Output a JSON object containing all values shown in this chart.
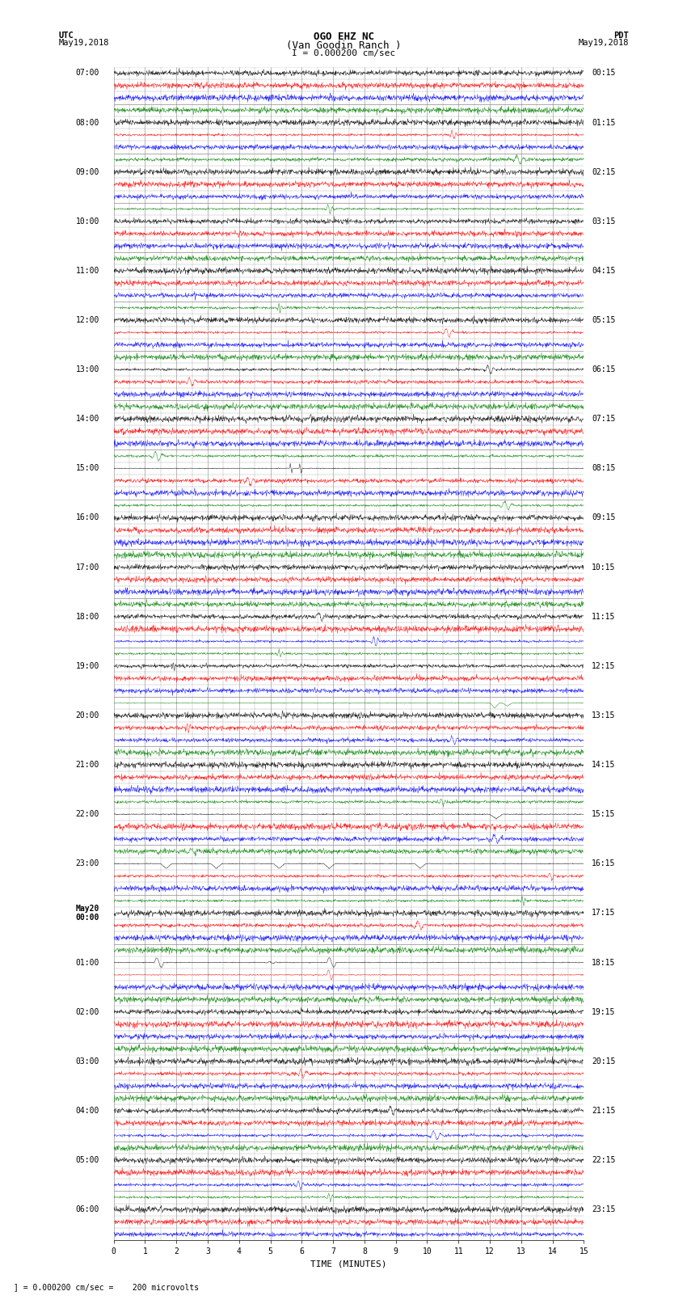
{
  "title_line1": "OGO EHZ NC",
  "title_line2": "(Van Goodin Ranch )",
  "title_line3": "I = 0.000200 cm/sec",
  "left_label_top": "UTC",
  "left_label_date": "May19,2018",
  "right_label_top": "PDT",
  "right_label_date": "May19,2018",
  "bottom_label": "TIME (MINUTES)",
  "footer_text": "= 0.000200 cm/sec =    200 microvolts",
  "n_rows": 95,
  "x_min": 0,
  "x_max": 15,
  "x_ticks": [
    0,
    1,
    2,
    3,
    4,
    5,
    6,
    7,
    8,
    9,
    10,
    11,
    12,
    13,
    14,
    15
  ],
  "row_colors_pattern": [
    "black",
    "red",
    "blue",
    "green"
  ],
  "noise_amplitude": 0.08,
  "background_color": "white",
  "grid_color": "#888888",
  "title_fontsize": 9,
  "label_fontsize": 7.5,
  "tick_fontsize": 7,
  "utc_hour_labels": [
    "07:00",
    "08:00",
    "09:00",
    "10:00",
    "11:00",
    "12:00",
    "13:00",
    "14:00",
    "15:00",
    "16:00",
    "17:00",
    "18:00",
    "19:00",
    "20:00",
    "21:00",
    "22:00",
    "23:00",
    "May20\n00:00",
    "01:00",
    "02:00",
    "03:00",
    "04:00",
    "05:00",
    "06:00"
  ],
  "pdt_hour_labels": [
    "00:15",
    "01:15",
    "02:15",
    "03:15",
    "04:15",
    "05:15",
    "06:15",
    "07:15",
    "08:15",
    "09:15",
    "10:15",
    "11:15",
    "12:15",
    "13:15",
    "14:15",
    "15:15",
    "16:15",
    "17:15",
    "18:15",
    "19:15",
    "20:15",
    "21:15",
    "22:15",
    "23:15"
  ]
}
